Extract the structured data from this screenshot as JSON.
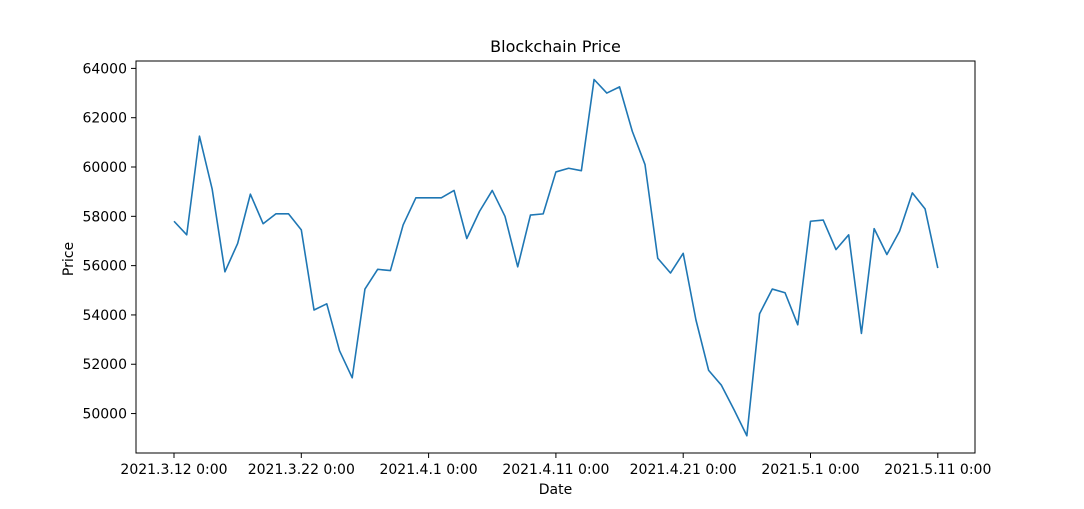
{
  "chart_data": {
    "type": "line",
    "title": "Blockchain Price",
    "xlabel": "Date",
    "ylabel": "Price",
    "x_ticks": [
      "2021.3.12 0:00",
      "2021.3.22 0:00",
      "2021.4.1 0:00",
      "2021.4.11 0:00",
      "2021.4.21 0:00",
      "2021.5.1 0:00",
      "2021.5.11 0:00"
    ],
    "y_ticks": [
      50000,
      52000,
      54000,
      56000,
      58000,
      60000,
      62000,
      64000
    ],
    "ylim": [
      48400,
      64300
    ],
    "grid": false,
    "color": "#1f77b4",
    "series": [
      {
        "x": [
          "2021.3.12",
          "2021.3.13",
          "2021.3.14",
          "2021.3.15",
          "2021.3.16",
          "2021.3.17",
          "2021.3.18",
          "2021.3.19",
          "2021.3.20",
          "2021.3.21",
          "2021.3.22",
          "2021.3.23",
          "2021.3.24",
          "2021.3.25",
          "2021.3.26",
          "2021.3.27",
          "2021.3.28",
          "2021.3.29",
          "2021.3.30",
          "2021.3.31",
          "2021.4.1",
          "2021.4.2",
          "2021.4.3",
          "2021.4.4",
          "2021.4.5",
          "2021.4.6",
          "2021.4.7",
          "2021.4.8",
          "2021.4.9",
          "2021.4.10",
          "2021.4.11",
          "2021.4.12",
          "2021.4.13",
          "2021.4.14",
          "2021.4.15",
          "2021.4.16",
          "2021.4.17",
          "2021.4.18",
          "2021.4.19",
          "2021.4.20",
          "2021.4.21",
          "2021.4.22",
          "2021.4.23",
          "2021.4.24",
          "2021.4.25",
          "2021.4.26",
          "2021.4.27",
          "2021.4.28",
          "2021.4.29",
          "2021.4.30",
          "2021.5.1",
          "2021.5.2",
          "2021.5.3",
          "2021.5.4",
          "2021.5.5",
          "2021.5.6",
          "2021.5.7",
          "2021.5.8",
          "2021.5.9",
          "2021.5.10",
          "2021.5.11"
        ],
        "values": [
          57800,
          57250,
          61250,
          59100,
          55750,
          56900,
          58900,
          57700,
          58100,
          58100,
          57450,
          54200,
          54450,
          52550,
          51450,
          55050,
          55850,
          55800,
          57650,
          58750,
          58750,
          58750,
          59050,
          57100,
          58200,
          59050,
          58000,
          55950,
          58050,
          58100,
          59800,
          59950,
          59850,
          63550,
          63000,
          63250,
          61450,
          60100,
          56300,
          55700,
          56500,
          53800,
          51750,
          51150,
          50150,
          49100,
          54050,
          55050,
          54900,
          53600,
          57800,
          57850,
          56650,
          57250,
          53250,
          57500,
          56450,
          57400,
          58950,
          58300,
          55900
        ]
      }
    ]
  }
}
